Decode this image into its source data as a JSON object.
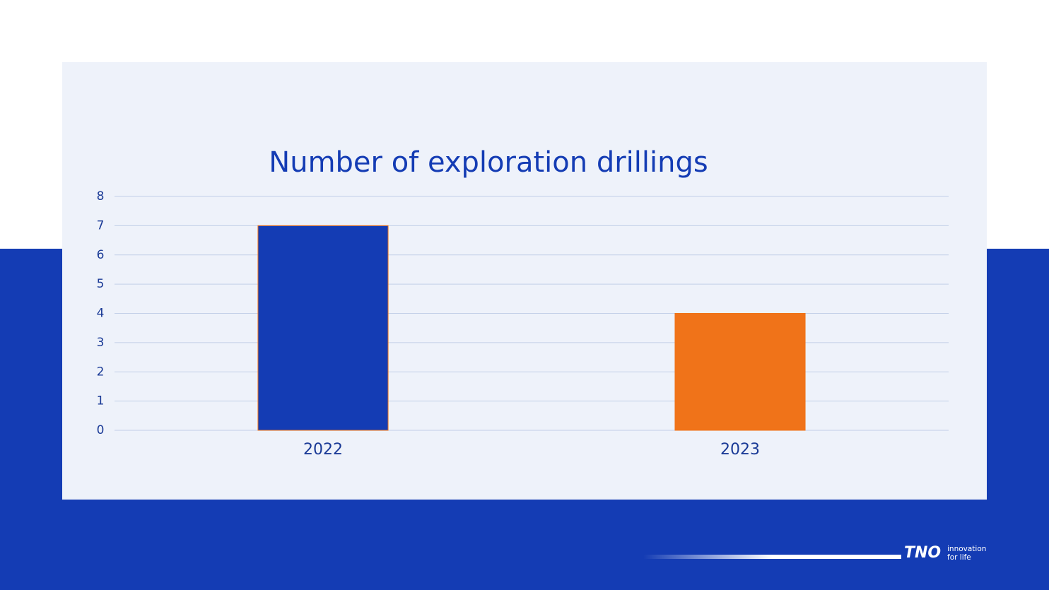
{
  "chart_data": {
    "type": "bar",
    "title": "Number of exploration drillings",
    "categories": [
      "2022",
      "2023"
    ],
    "values": [
      7,
      4
    ],
    "colors": [
      "#143cb4",
      "#f07319"
    ],
    "ylim": [
      0,
      8
    ],
    "yticks": [
      0,
      1,
      2,
      3,
      4,
      5,
      6,
      7,
      8
    ],
    "grid": true
  },
  "logo": {
    "brand": "TNO",
    "tagline": [
      "innovation",
      "for life"
    ]
  }
}
